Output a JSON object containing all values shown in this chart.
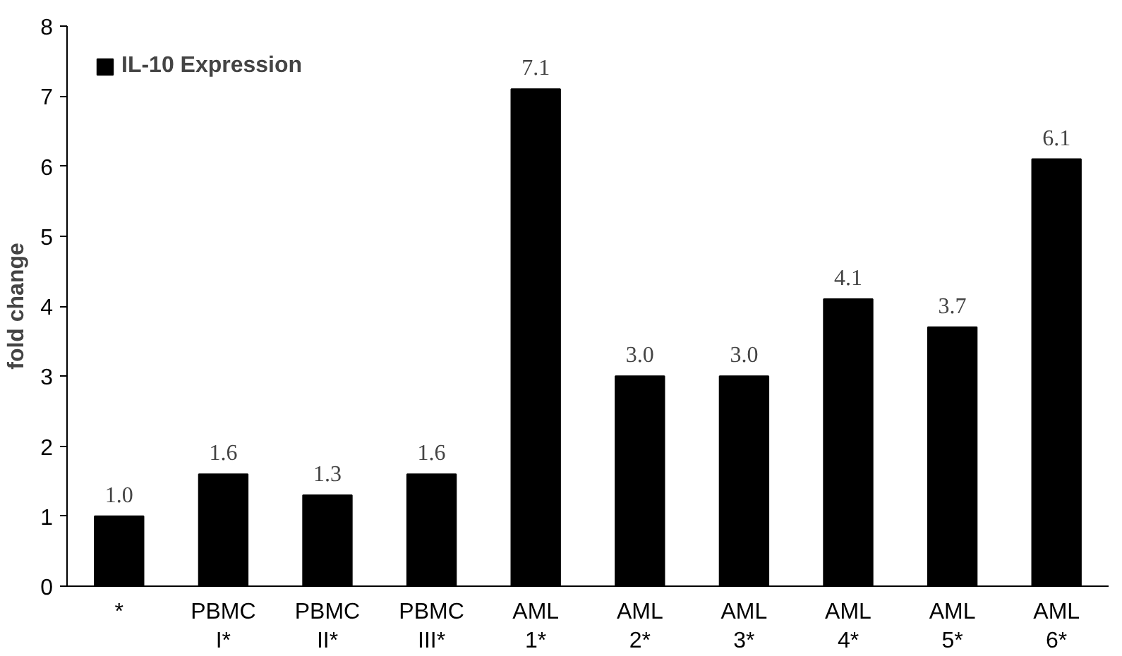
{
  "chart_data": {
    "type": "bar",
    "ylabel": "fold change",
    "categories": [
      "*",
      "PBMC\nI*",
      "PBMC\nII*",
      "PBMC\nIII*",
      "AML\n1*",
      "AML\n2*",
      "AML\n3*",
      "AML\n4*",
      "AML\n5*",
      "AML\n6*"
    ],
    "series": [
      {
        "name": "IL-10 Expression",
        "color": "#000000",
        "values": [
          1.0,
          1.6,
          1.3,
          1.6,
          7.1,
          3.0,
          3.0,
          4.1,
          3.7,
          6.1
        ]
      }
    ],
    "value_labels": [
      "1.0",
      "1.6",
      "1.3",
      "1.6",
      "7.1",
      "3.0",
      "3.0",
      "4.1",
      "3.7",
      "6.1"
    ],
    "ylim": [
      0,
      8
    ],
    "yticks": [
      0,
      1,
      2,
      3,
      4,
      5,
      6,
      7,
      8
    ],
    "grid": false,
    "legend": "top left"
  }
}
